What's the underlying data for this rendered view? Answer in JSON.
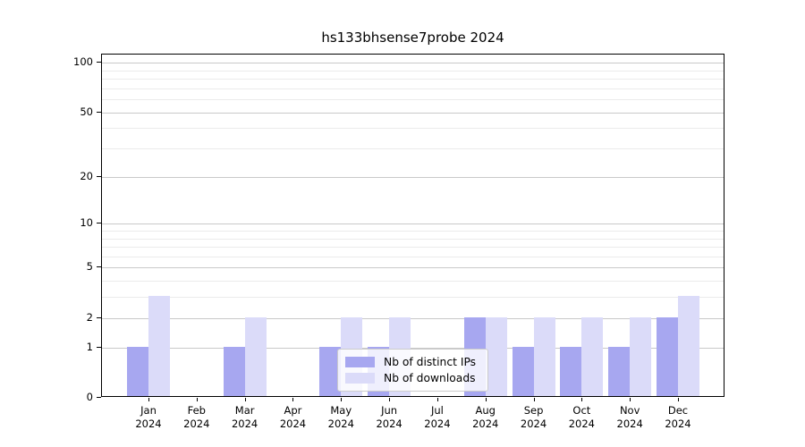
{
  "title": "hs133bhsense7probe 2024",
  "chart_data": {
    "type": "bar",
    "title": "hs133bhsense7probe 2024",
    "categories": [
      "Jan",
      "Feb",
      "Mar",
      "Apr",
      "May",
      "Jun",
      "Jul",
      "Aug",
      "Sep",
      "Oct",
      "Nov",
      "Dec"
    ],
    "year_label": "2024",
    "series": [
      {
        "name": "Nb of distinct IPs",
        "color": "#a7a7f0",
        "values": [
          1,
          0,
          1,
          0,
          1,
          1,
          0,
          2,
          1,
          1,
          1,
          2
        ]
      },
      {
        "name": "Nb of downloads",
        "color": "#dbdbf9",
        "values": [
          3,
          0,
          2,
          0,
          2,
          2,
          0,
          2,
          2,
          2,
          2,
          3
        ]
      }
    ],
    "y_scale": "log1p",
    "ylim": [
      0,
      112
    ],
    "y_major_ticks": [
      0,
      1,
      2,
      5,
      10,
      20,
      50,
      100
    ],
    "y_minor_ticks": [
      3,
      4,
      6,
      7,
      8,
      9,
      30,
      40,
      60,
      70,
      80,
      90
    ],
    "xlabel": "",
    "ylabel": "",
    "grid": true,
    "legend_position": "lower center"
  },
  "colors": {
    "bar_distinct_ips": "#a7a7f0",
    "bar_downloads": "#dbdbf9",
    "grid_major": "#c9c9c9",
    "grid_minor": "#ebebeb",
    "axis": "#000000",
    "legend_border": "#cccccc"
  }
}
